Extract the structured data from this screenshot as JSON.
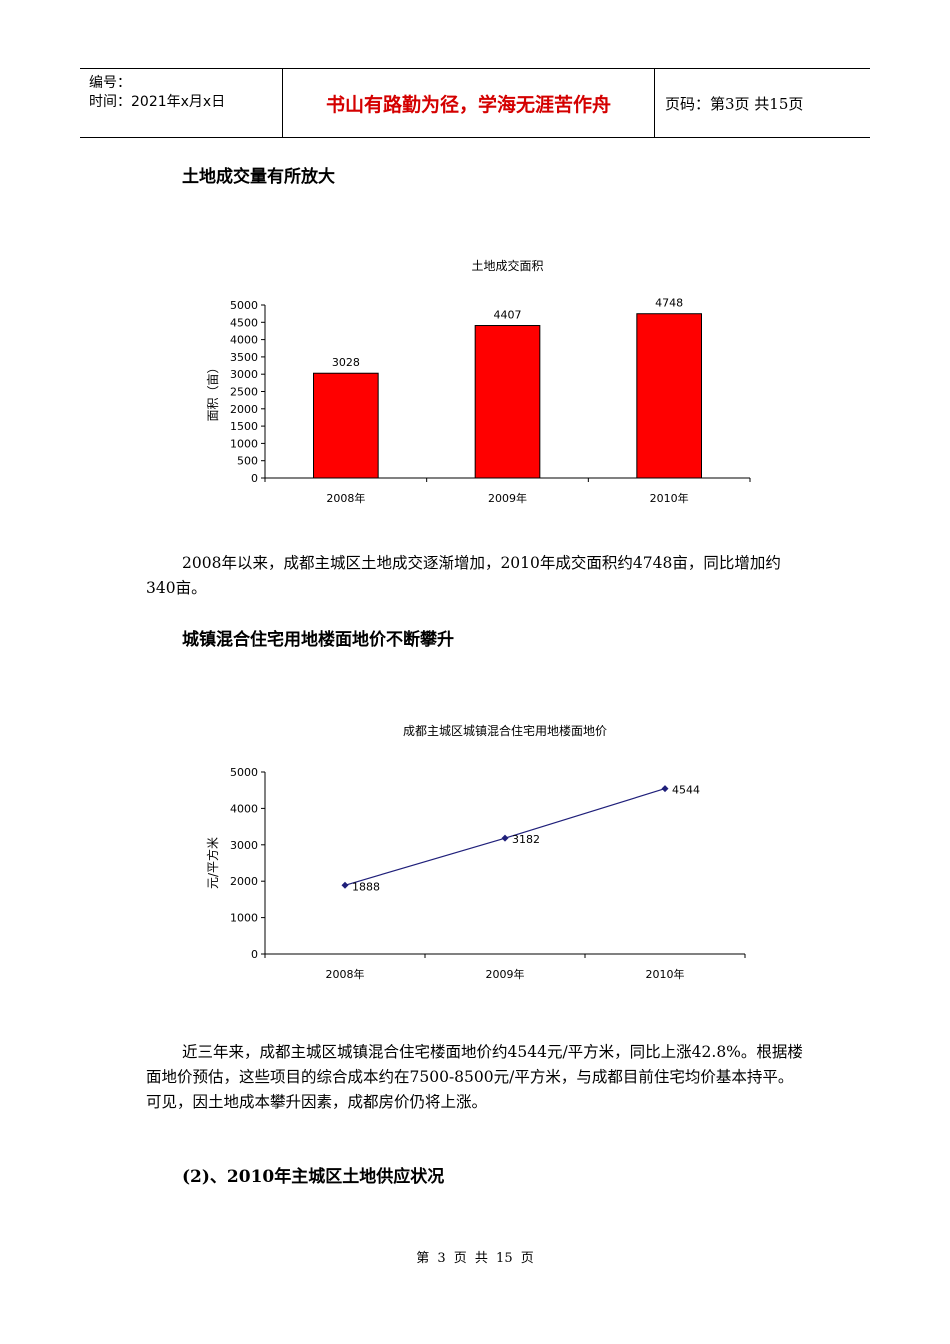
{
  "header": {
    "number_label": "编号：",
    "time_label": "时间：2021年x月x日",
    "motto": "书山有路勤为径，学海无涯苦作舟",
    "page_info": "页码：第3页  共15页"
  },
  "section1": {
    "heading": "土地成交量有所放大",
    "paragraph": "2008年以来，成都主城区土地成交逐渐增加，2010年成交面积约4748亩，同比增加约340亩。"
  },
  "section2": {
    "heading": "城镇混合住宅用地楼面地价不断攀升",
    "paragraph": "近三年来，成都主城区城镇混合住宅楼面地价约4544元/平方米，同比上涨42.8%。根据楼面地价预估，这些项目的综合成本约在7500-8500元/平方米，与成都目前住宅均价基本持平。可见，因土地成本攀升因素，成都房价仍将上涨。"
  },
  "section3": {
    "heading": "(2)、2010年主城区土地供应状况"
  },
  "footer": {
    "text": "第 3 页 共 15 页"
  },
  "chart_data": [
    {
      "type": "bar",
      "title": "土地成交面积",
      "ylabel": "面积（亩）",
      "categories": [
        "2008年",
        "2009年",
        "2010年"
      ],
      "values": [
        3028,
        4407,
        4748
      ],
      "ylim": [
        0,
        5000
      ],
      "yticks": [
        0,
        500,
        1000,
        1500,
        2000,
        2500,
        3000,
        3500,
        4000,
        4500,
        5000
      ],
      "color": "#ff0000",
      "grid": false
    },
    {
      "type": "line",
      "title": "成都主城区城镇混合住宅用地楼面地价",
      "ylabel": "元/平方米",
      "categories": [
        "2008年",
        "2009年",
        "2010年"
      ],
      "values": [
        1888,
        3182,
        4544
      ],
      "ylim": [
        0,
        5000
      ],
      "yticks": [
        0,
        1000,
        2000,
        3000,
        4000,
        5000
      ],
      "color": "#1f1f7a",
      "grid": false
    }
  ]
}
